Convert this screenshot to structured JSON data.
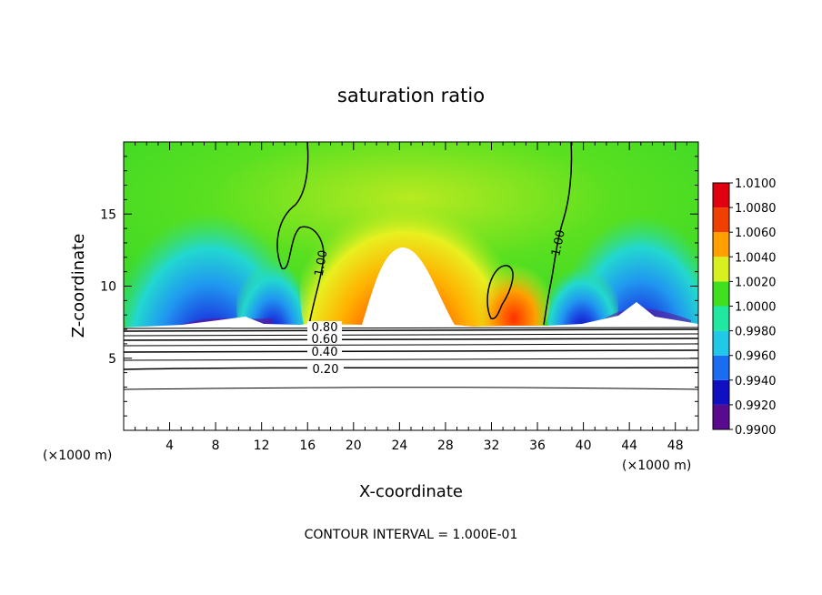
{
  "chart_data": {
    "type": "heatmap",
    "title": "saturation ratio",
    "xlabel": "X-coordinate",
    "ylabel": "Z-coordinate",
    "x_unit": "(×1000 m)",
    "xlim": [
      0,
      50
    ],
    "ylim": [
      0,
      20
    ],
    "x_ticks": [
      4,
      8,
      12,
      16,
      20,
      24,
      28,
      32,
      36,
      40,
      44,
      48
    ],
    "y_ticks": [
      5,
      10,
      15
    ],
    "colorbar": {
      "levels": [
        "0.9900",
        "0.9920",
        "0.9940",
        "0.9960",
        "0.9980",
        "1.0000",
        "1.0020",
        "1.0040",
        "1.0060",
        "1.0080",
        "1.0100"
      ],
      "colors": [
        "#5a0a8c",
        "#1010c0",
        "#1a6cf0",
        "#22c8e8",
        "#20e8a0",
        "#40e020",
        "#d8f020",
        "#ffa000",
        "#f04000",
        "#e00010",
        "#f08080"
      ]
    },
    "contours": [
      {
        "label": "0.20",
        "z": 4.4
      },
      {
        "label": "0.40",
        "z": 5.6
      },
      {
        "label": "0.60",
        "z": 6.3
      },
      {
        "label": "0.80",
        "z": 6.8
      },
      {
        "label": "1.00",
        "z": 10.5
      },
      {
        "label": "1.00",
        "z": 12.5
      }
    ],
    "footer": "CONTOUR INTERVAL = 1.000E-01"
  }
}
